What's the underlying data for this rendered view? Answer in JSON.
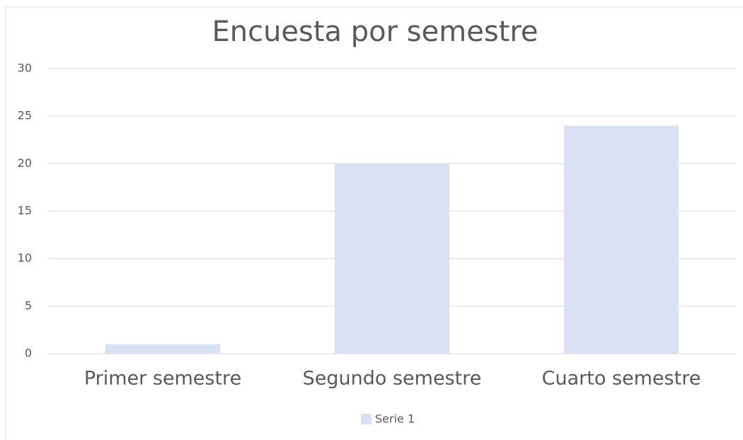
{
  "chart_data": {
    "type": "bar",
    "title": "Encuesta por semestre",
    "categories": [
      "Primer semestre",
      "Segundo semestre",
      "Cuarto semestre"
    ],
    "series": [
      {
        "name": "Serie 1",
        "color": "#d9e2f3",
        "values": [
          1,
          20,
          24
        ]
      }
    ],
    "ylim": [
      0,
      30
    ],
    "yticks": [
      0,
      5,
      10,
      15,
      20,
      25,
      30
    ],
    "grid": true,
    "legend": "bottom"
  }
}
